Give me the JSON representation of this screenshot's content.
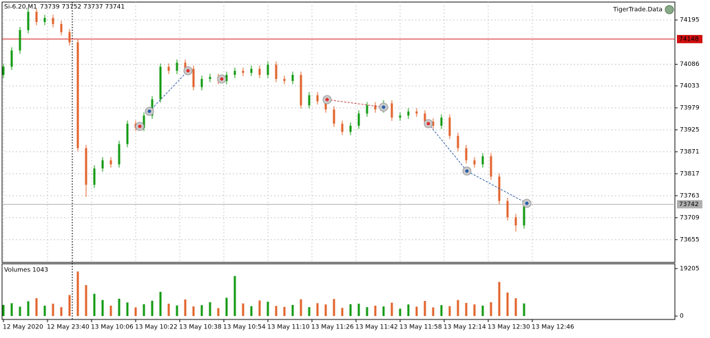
{
  "chart_data": [
    {
      "type": "candlestick",
      "title": "Si-6.20,M1",
      "subtitle": "73739 73752 73737 73741",
      "annotations": [
        "TigerTrade.Data"
      ],
      "x": [
        0,
        3,
        6,
        9,
        12,
        15,
        18,
        21,
        24,
        27,
        30,
        33,
        36,
        39,
        42,
        45,
        48,
        51,
        54,
        57,
        60,
        63,
        66,
        69,
        72,
        75,
        78,
        81,
        84,
        87,
        90,
        93,
        96,
        99,
        102,
        105,
        108,
        111,
        114,
        117,
        120,
        123,
        126,
        129,
        132,
        135,
        138,
        141,
        144,
        147,
        150,
        153,
        156,
        159,
        162,
        165,
        168,
        171,
        174,
        177,
        180,
        183,
        186,
        189
      ],
      "open": [
        74060,
        74080,
        74120,
        74170,
        74215,
        74190,
        74200,
        74185,
        74165,
        74140,
        73880,
        73790,
        73830,
        73850,
        73840,
        73890,
        73940,
        73930,
        73960,
        74000,
        74080,
        74070,
        74090,
        74075,
        74030,
        74050,
        74055,
        74045,
        74060,
        74070,
        74065,
        74075,
        74060,
        74085,
        74050,
        74045,
        74060,
        73985,
        74010,
        73995,
        73975,
        73940,
        73920,
        73935,
        73965,
        73985,
        73975,
        73990,
        73955,
        73960,
        73970,
        73965,
        73945,
        73935,
        73955,
        73910,
        73880,
        73850,
        73840,
        73860,
        73810,
        73750,
        73710,
        73690
      ],
      "high": [
        74088,
        74128,
        74178,
        74223,
        74223,
        74208,
        74208,
        74193,
        74173,
        74148,
        73888,
        73838,
        73858,
        73858,
        73898,
        73948,
        73948,
        73968,
        74008,
        74088,
        74088,
        74098,
        74098,
        74083,
        74058,
        74063,
        74063,
        74068,
        74078,
        74078,
        74083,
        74083,
        74093,
        74093,
        74058,
        74068,
        74068,
        74018,
        74018,
        74003,
        73983,
        73948,
        73943,
        73973,
        73993,
        73993,
        73998,
        73998,
        73968,
        73978,
        73978,
        73973,
        73953,
        73963,
        73963,
        73918,
        73888,
        73858,
        73868,
        73868,
        73818,
        73758,
        73718,
        73750
      ],
      "low": [
        74052,
        74072,
        74112,
        74162,
        74182,
        74182,
        74177,
        74157,
        74132,
        73872,
        73760,
        73782,
        73822,
        73832,
        73832,
        73882,
        73922,
        73922,
        73952,
        73992,
        74062,
        74062,
        74067,
        74022,
        74022,
        74042,
        74037,
        74037,
        74052,
        74057,
        74057,
        74052,
        74052,
        74042,
        74037,
        74037,
        73977,
        73977,
        73987,
        73967,
        73932,
        73912,
        73912,
        73927,
        73957,
        73967,
        73967,
        73947,
        73947,
        73952,
        73957,
        73937,
        73927,
        73927,
        73902,
        73872,
        73842,
        73832,
        73832,
        73802,
        73742,
        73702,
        73675,
        73682
      ],
      "close": [
        74080,
        74120,
        74170,
        74215,
        74190,
        74200,
        74185,
        74165,
        74140,
        73880,
        73790,
        73830,
        73850,
        73840,
        73890,
        73940,
        73930,
        73960,
        74000,
        74080,
        74070,
        74090,
        74075,
        74030,
        74050,
        74055,
        74045,
        74060,
        74070,
        74065,
        74075,
        74060,
        74085,
        74050,
        74045,
        74060,
        73985,
        74010,
        73995,
        73975,
        73940,
        73920,
        73935,
        73965,
        73985,
        73975,
        73990,
        73955,
        73960,
        73970,
        73965,
        73945,
        73935,
        73955,
        73910,
        73880,
        73850,
        73840,
        73860,
        73810,
        73750,
        73710,
        73690,
        73742
      ],
      "up_color": "#119911",
      "down_color": "#e2622a",
      "xlim": [
        -0.5,
        243.75
      ],
      "ylim": [
        73599,
        74239
      ],
      "yticks": [
        74195,
        74086,
        74033,
        73979,
        73925,
        73871,
        73817,
        73763,
        73709,
        73655
      ],
      "xticks": [
        {
          "value": 0,
          "label": "12 May 2020"
        },
        {
          "value": 16,
          "label": "12 May 23:40"
        },
        {
          "value": 32,
          "label": "13 May 10:06"
        },
        {
          "value": 48,
          "label": "13 May 10:22"
        },
        {
          "value": 64,
          "label": "13 May 10:38"
        },
        {
          "value": 80,
          "label": "13 May 10:54"
        },
        {
          "value": 96,
          "label": "13 May 11:10"
        },
        {
          "value": 112,
          "label": "13 May 11:26"
        },
        {
          "value": 128,
          "label": "13 May 11:42"
        },
        {
          "value": 144,
          "label": "13 May 11:58"
        },
        {
          "value": 160,
          "label": "13 May 12:14"
        },
        {
          "value": 176,
          "label": "13 May 12:30"
        },
        {
          "value": 192,
          "label": "13 May 12:46"
        }
      ],
      "price_lines": [
        {
          "value": 74148,
          "color": "#d01010"
        },
        {
          "value": 73742,
          "color": "#b0b0b0"
        }
      ],
      "grid": true
    },
    {
      "type": "bar",
      "title": "Volumes 1043",
      "x": [
        0,
        3,
        6,
        9,
        12,
        15,
        18,
        21,
        24,
        27,
        30,
        33,
        36,
        39,
        42,
        45,
        48,
        51,
        54,
        57,
        60,
        63,
        66,
        69,
        72,
        75,
        78,
        81,
        84,
        87,
        90,
        93,
        96,
        99,
        102,
        105,
        108,
        111,
        114,
        117,
        120,
        123,
        126,
        129,
        132,
        135,
        138,
        141,
        144,
        147,
        150,
        153,
        156,
        159,
        162,
        165,
        168,
        171,
        174,
        177,
        180,
        183,
        186,
        189
      ],
      "values": [
        4500,
        5200,
        3800,
        6000,
        7200,
        4200,
        5000,
        3600,
        8500,
        18000,
        12500,
        9000,
        6500,
        4200,
        7000,
        5500,
        3500,
        4800,
        6200,
        9800,
        5000,
        4300,
        6700,
        3900,
        4400,
        5600,
        3200,
        7400,
        16200,
        5100,
        4000,
        6300,
        5800,
        4100,
        3700,
        4500,
        6800,
        3600,
        5200,
        4700,
        6900,
        3300,
        4800,
        5000,
        3600,
        4200,
        3900,
        5400,
        3000,
        4700,
        3800,
        6100,
        3500,
        4400,
        4000,
        6500,
        5300,
        4700,
        4200,
        5600,
        13800,
        9500,
        7200,
        5100
      ],
      "xlim": [
        -0.5,
        243.75
      ],
      "ylim": [
        -1372,
        21126
      ],
      "yticks": [
        0,
        19205
      ]
    }
  ]
}
